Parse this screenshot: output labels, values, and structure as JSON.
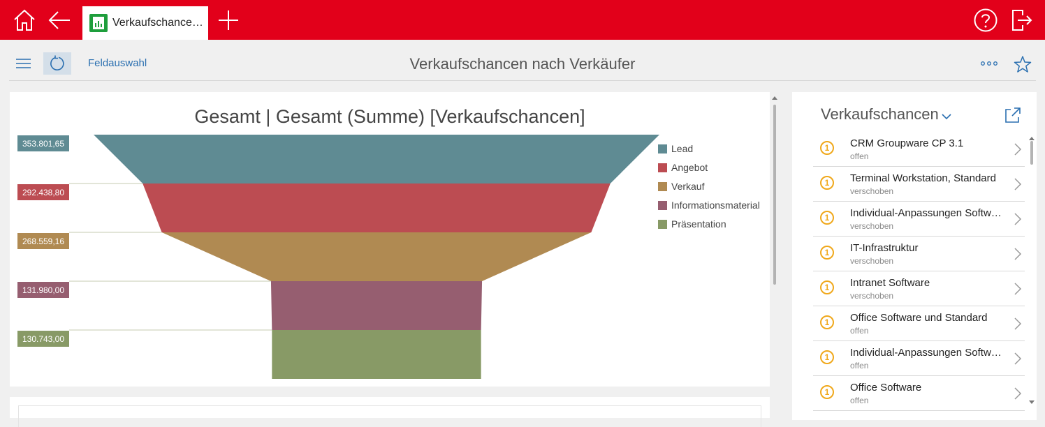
{
  "header": {
    "tab_label": "Verkaufschance…"
  },
  "toolbar": {
    "field_selection": "Feldauswahl",
    "page_title": "Verkaufschancen nach Verkäufer"
  },
  "colors": {
    "brand": "#e2001a",
    "link": "#2a6fb0",
    "badge": "#f0a81b"
  },
  "chart_data": {
    "type": "funnel",
    "title": "Gesamt | Gesamt (Summe) [Verkaufschancen]",
    "legend_position": "right",
    "categories": [
      "Lead",
      "Angebot",
      "Verkauf",
      "Informationsmaterial",
      "Präsentation"
    ],
    "values": [
      353801.65,
      292438.8,
      268559.16,
      131980.0,
      130743.0
    ],
    "labels": [
      "353.801,65",
      "292.438,80",
      "268.559,16",
      "131.980,00",
      "130.743,00"
    ],
    "colors": [
      "#5f8b93",
      "#bc4c52",
      "#b08a52",
      "#965e70",
      "#889a66"
    ]
  },
  "side_panel": {
    "title": "Verkaufschancen",
    "items": [
      {
        "badge": "1",
        "title": "CRM Groupware CP 3.1",
        "status": "offen"
      },
      {
        "badge": "1",
        "title": "Terminal Workstation, Standard",
        "status": "verschoben"
      },
      {
        "badge": "1",
        "title": "Individual-Anpassungen Software",
        "status": "verschoben"
      },
      {
        "badge": "1",
        "title": "IT-Infrastruktur",
        "status": "verschoben"
      },
      {
        "badge": "1",
        "title": "Intranet Software",
        "status": "verschoben"
      },
      {
        "badge": "1",
        "title": "Office Software und Standard",
        "status": "offen"
      },
      {
        "badge": "1",
        "title": "Individual-Anpassungen Software",
        "status": "offen"
      },
      {
        "badge": "1",
        "title": "Office Software",
        "status": "offen"
      }
    ]
  }
}
